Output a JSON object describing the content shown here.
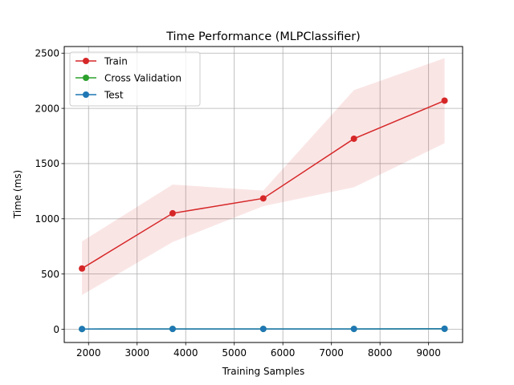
{
  "chart_data": {
    "type": "line",
    "title": "Time Performance (MLPClassifier)",
    "xlabel": "Training Samples",
    "ylabel": "Time (ms)",
    "xlim": [
      1500,
      9700
    ],
    "ylim": [
      -120,
      2560
    ],
    "xticks": [
      2000,
      3000,
      4000,
      5000,
      6000,
      7000,
      8000,
      9000
    ],
    "yticks": [
      0,
      500,
      1000,
      1500,
      2000,
      2500
    ],
    "grid": true,
    "legend_position": "top-left",
    "x": [
      1865,
      3731,
      5597,
      7463,
      9329
    ],
    "series": [
      {
        "name": "Train",
        "color": "#d62728",
        "values": [
          550,
          1050,
          1185,
          1725,
          2070
        ],
        "band_lower": [
          310,
          790,
          1115,
          1285,
          1685
        ],
        "band_upper": [
          795,
          1310,
          1255,
          2165,
          2455
        ]
      },
      {
        "name": "Cross Validation",
        "color": "#2ca02c",
        "values": [
          2,
          3,
          3,
          3,
          4
        ]
      },
      {
        "name": "Test",
        "color": "#1f77b4",
        "values": [
          2,
          3,
          3,
          3,
          4
        ]
      }
    ]
  }
}
